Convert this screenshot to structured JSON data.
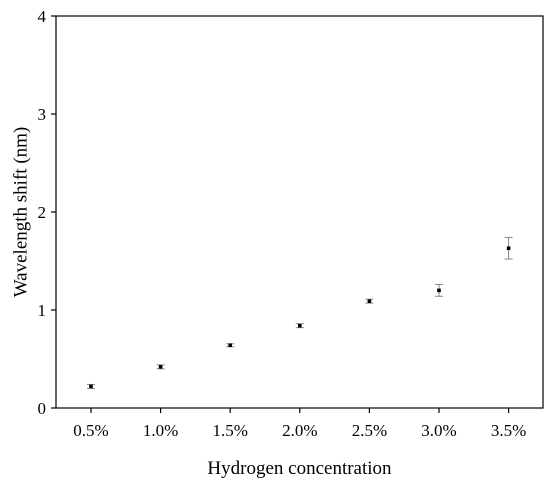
{
  "chart_data": {
    "type": "scatter",
    "title": "",
    "xlabel": "Hydrogen concentration",
    "ylabel": "Wavelength shift (nm)",
    "categories": [
      "0.5%",
      "1.0%",
      "1.5%",
      "2.0%",
      "2.5%",
      "3.0%",
      "3.5%"
    ],
    "ylim": [
      0,
      4
    ],
    "yticks": [
      "0",
      "1",
      "2",
      "3",
      "4"
    ],
    "grid": false,
    "series": [
      {
        "values": [
          0.22,
          0.42,
          0.64,
          0.84,
          1.09,
          1.2,
          1.63
        ],
        "errors": [
          0.02,
          0.02,
          0.015,
          0.02,
          0.02,
          0.06,
          0.11
        ]
      }
    ],
    "colors": {
      "point": "#000000",
      "errorbar": "#888888",
      "axis": "#000000"
    }
  }
}
